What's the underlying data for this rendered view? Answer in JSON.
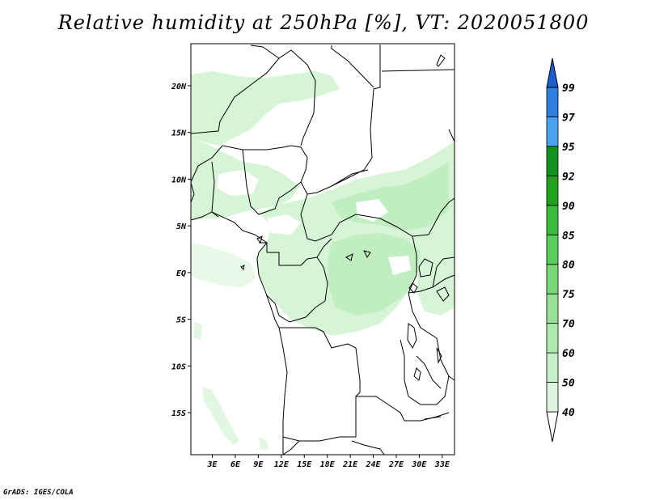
{
  "title": "Relative humidity at 250hPa [%], VT: 2020051800",
  "footer": "GrADS: IGES/COLA",
  "lat_labels": [
    "20N",
    "15N",
    "10N",
    "5N",
    "EQ",
    "5S",
    "10S",
    "15S"
  ],
  "lon_labels": [
    "3E",
    "6E",
    "9E",
    "12E",
    "15E",
    "18E",
    "21E",
    "24E",
    "27E",
    "30E",
    "33E"
  ],
  "colorbar": {
    "labels": [
      "40",
      "50",
      "60",
      "70",
      "75",
      "80",
      "85",
      "90",
      "92",
      "95",
      "97",
      "99"
    ],
    "colors": [
      "#f0fff0",
      "#dcf5dc",
      "#c8f0c8",
      "#aeeaae",
      "#96e196",
      "#78d878",
      "#5ace5a",
      "#3cbc3c",
      "#1fa31f",
      "#11921f",
      "#4aa3ef",
      "#2e7fe0",
      "#1a5fd2"
    ]
  },
  "map": {
    "extent": {
      "lon": [
        0,
        34
      ],
      "lat": [
        -19.5,
        24.5
      ]
    },
    "fill_color": "#d6f5d6",
    "deep_fill_color": "#c1eec1"
  }
}
